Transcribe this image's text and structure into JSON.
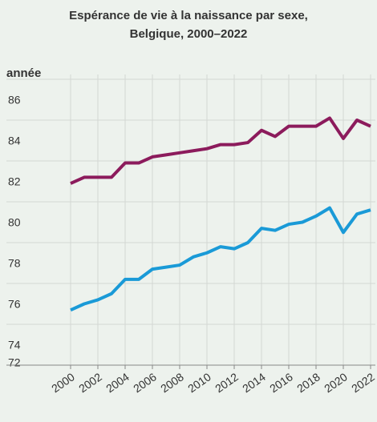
{
  "chart_data": {
    "type": "line",
    "title": "Espérance de vie à la naissance par sexe, Belgique, 2000–2022",
    "y_label": "année",
    "x": [
      2000,
      2001,
      2002,
      2003,
      2004,
      2005,
      2006,
      2007,
      2008,
      2009,
      2010,
      2011,
      2012,
      2013,
      2014,
      2015,
      2016,
      2017,
      2018,
      2019,
      2020,
      2021,
      2022
    ],
    "series": [
      {
        "color": "#8c1b5c",
        "values": [
          80.9,
          81.2,
          81.2,
          81.2,
          81.9,
          81.9,
          82.2,
          82.3,
          82.4,
          82.5,
          82.6,
          82.8,
          82.8,
          82.9,
          83.5,
          83.2,
          83.7,
          83.7,
          83.7,
          84.1,
          83.1,
          84.0,
          83.7
        ]
      },
      {
        "color": "#1a9ad7",
        "values": [
          74.7,
          75.0,
          75.2,
          75.5,
          76.2,
          76.2,
          76.7,
          76.8,
          76.9,
          77.3,
          77.5,
          77.8,
          77.7,
          78.0,
          78.7,
          78.6,
          78.9,
          79.0,
          79.3,
          79.7,
          78.5,
          79.4,
          79.6
        ]
      }
    ],
    "xlim": [
      2000,
      2022
    ],
    "xticks": [
      2000,
      2002,
      2004,
      2006,
      2008,
      2010,
      2012,
      2014,
      2016,
      2018,
      2020,
      2022
    ],
    "ylim": [
      72,
      86
    ],
    "yticks": [
      72,
      74,
      76,
      78,
      80,
      82,
      84,
      86
    ],
    "grid": true
  }
}
